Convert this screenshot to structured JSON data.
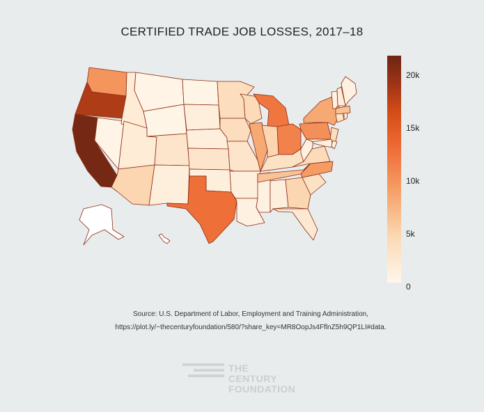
{
  "title": "CERTIFIED TRADE JOB LOSSES, 2017–18",
  "colorbar": {
    "ticks": [
      "20k",
      "15k",
      "10k",
      "5k",
      "0"
    ],
    "min": 0,
    "max": 21500
  },
  "source": {
    "line1": "Source: U.S. Department of Labor, Employment and Training Administration,",
    "line2": "https://plot.ly/~thecenturyfoundation/580/?share_key=MR8OopJs4FflnZ5h9QP1LI#data."
  },
  "logo": {
    "line1": "THE CENTURY",
    "line2": "FOUNDATION"
  },
  "colors": {
    "background": "#e9ecec",
    "low": "#fff6ea",
    "high": "#6c2513",
    "border": "#8b2a12"
  },
  "chart_data": {
    "type": "choropleth",
    "locationmode": "USA-states",
    "units": "certified trade job losses",
    "values": [
      {
        "state": "CA",
        "value": 21000
      },
      {
        "state": "OR",
        "value": 18000
      },
      {
        "state": "TX",
        "value": 12500
      },
      {
        "state": "MI",
        "value": 12000
      },
      {
        "state": "OH",
        "value": 11000
      },
      {
        "state": "WA",
        "value": 9500
      },
      {
        "state": "PA",
        "value": 10000
      },
      {
        "state": "NC",
        "value": 9000
      },
      {
        "state": "NY",
        "value": 8000
      },
      {
        "state": "IL",
        "value": 8000
      },
      {
        "state": "MA",
        "value": 6000
      },
      {
        "state": "TN",
        "value": 6000
      },
      {
        "state": "AZ",
        "value": 4500
      },
      {
        "state": "GA",
        "value": 4500
      },
      {
        "state": "IN",
        "value": 4500
      },
      {
        "state": "VA",
        "value": 4000
      },
      {
        "state": "WI",
        "value": 4000
      },
      {
        "state": "MN",
        "value": 3500
      },
      {
        "state": "IA",
        "value": 3500
      },
      {
        "state": "NJ",
        "value": 3500
      },
      {
        "state": "SC",
        "value": 3000
      },
      {
        "state": "KY",
        "value": 3000
      },
      {
        "state": "MO",
        "value": 2500
      },
      {
        "state": "CO",
        "value": 2500
      },
      {
        "state": "KS",
        "value": 2500
      },
      {
        "state": "CT",
        "value": 2500
      },
      {
        "state": "FL",
        "value": 2000
      },
      {
        "state": "NH",
        "value": 1500
      },
      {
        "state": "ID",
        "value": 1500
      },
      {
        "state": "UT",
        "value": 1500
      },
      {
        "state": "NM",
        "value": 1000
      },
      {
        "state": "AR",
        "value": 1000
      },
      {
        "state": "AL",
        "value": 1000
      },
      {
        "state": "MD",
        "value": 1000
      },
      {
        "state": "OK",
        "value": 1000
      },
      {
        "state": "NE",
        "value": 1000
      },
      {
        "state": "SD",
        "value": 1000
      },
      {
        "state": "LA",
        "value": 700
      },
      {
        "state": "MS",
        "value": 700
      },
      {
        "state": "WV",
        "value": 700
      },
      {
        "state": "ME",
        "value": 700
      },
      {
        "state": "VT",
        "value": 500
      },
      {
        "state": "RI",
        "value": 500
      },
      {
        "state": "DE",
        "value": 500
      },
      {
        "state": "NV",
        "value": 300
      },
      {
        "state": "MT",
        "value": 300
      },
      {
        "state": "WY",
        "value": 200
      },
      {
        "state": "ND",
        "value": 200
      },
      {
        "state": "AK",
        "value": 100
      },
      {
        "state": "HI",
        "value": 100
      }
    ]
  }
}
